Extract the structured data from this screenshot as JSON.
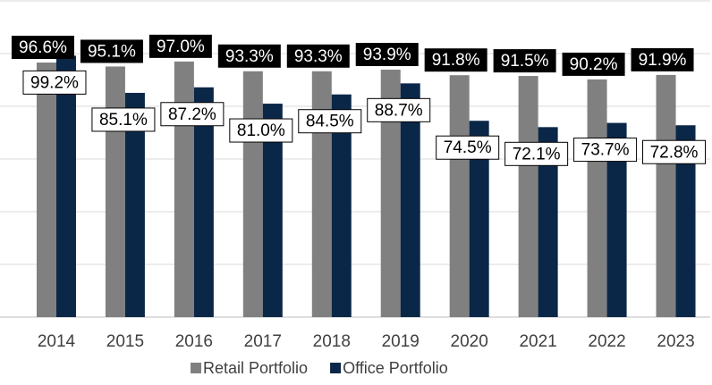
{
  "chart_data": {
    "type": "bar",
    "categories": [
      "2014",
      "2015",
      "2016",
      "2017",
      "2018",
      "2019",
      "2020",
      "2021",
      "2022",
      "2023"
    ],
    "series": [
      {
        "name": "Retail Portfolio",
        "color": "#808080",
        "values": [
          96.6,
          95.1,
          97.0,
          93.3,
          93.3,
          93.9,
          91.8,
          91.5,
          90.2,
          91.9
        ],
        "value_labels": [
          "96.6%",
          "95.1%",
          "97.0%",
          "93.3%",
          "93.3%",
          "93.9%",
          "91.8%",
          "91.5%",
          "90.2%",
          "91.9%"
        ]
      },
      {
        "name": "Office Portfolio",
        "color": "#0b2748",
        "values": [
          99.2,
          85.1,
          87.2,
          81.0,
          84.5,
          88.7,
          74.5,
          72.1,
          73.7,
          72.8
        ],
        "value_labels": [
          "99.2%",
          "85.1%",
          "87.2%",
          "81.0%",
          "84.5%",
          "88.7%",
          "74.5%",
          "72.1%",
          "73.7%",
          "72.8%"
        ]
      }
    ],
    "ylim": [
      0,
      120
    ],
    "yticks": [
      0,
      20,
      40,
      60,
      80,
      100,
      120
    ],
    "grid": true
  }
}
